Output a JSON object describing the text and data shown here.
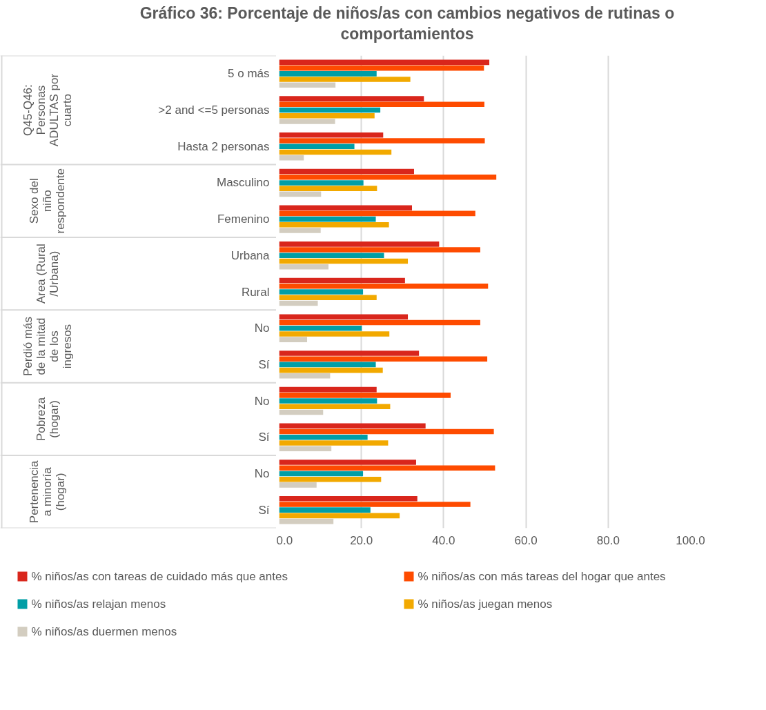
{
  "chart_data": {
    "type": "bar",
    "orientation": "horizontal",
    "title": "Gráfico 36: Porcentaje de niños/as con cambios negativos de rutinas o comportamientos",
    "categories": [
      "5 o más",
      ">2 and <=5 personas",
      "Hasta 2 personas",
      "Masculino",
      "Femenino",
      "Urbana",
      "Rural",
      "No",
      "Sí",
      "No",
      "Sí",
      "No",
      "Sí"
    ],
    "annotations": [
      "Q45-Q46: Personas ADULTAS por cuarto",
      "Sexo del niño respondente",
      "Area (Rural/Urbana)",
      "Perdió más de la mitad de los ingresos",
      "Pobreza (hogar)",
      "Pertenencia a minoría (hogar)"
    ],
    "series": [
      {
        "name": "% niños/as con tareas de cuidado más que antes",
        "color": "#d9261c",
        "values": [
          51.1,
          35.2,
          25.3,
          32.8,
          32.3,
          38.9,
          30.6,
          31.3,
          34.0,
          23.7,
          35.6,
          33.3,
          33.6
        ]
      },
      {
        "name": "% niños/as con más tareas del hogar que antes",
        "color": "#fe4b00",
        "values": [
          49.8,
          49.9,
          50.0,
          52.8,
          47.7,
          48.9,
          50.8,
          48.9,
          50.6,
          41.7,
          52.2,
          52.5,
          46.5
        ]
      },
      {
        "name": "% niños/as relajan menos",
        "color": "#009ea6",
        "values": [
          23.7,
          24.6,
          18.3,
          20.5,
          23.5,
          25.5,
          20.4,
          20.1,
          23.5,
          23.8,
          21.5,
          20.4,
          22.2
        ]
      },
      {
        "name": "% niños/as juegan menos",
        "color": "#f2a900",
        "values": [
          31.9,
          23.2,
          27.3,
          23.8,
          26.7,
          31.3,
          23.7,
          26.8,
          25.2,
          27.0,
          26.5,
          24.8,
          29.3
        ]
      },
      {
        "name": "% niños/as duermen menos",
        "color": "#d3cdc0",
        "values": [
          13.7,
          13.6,
          6.0,
          10.2,
          10.1,
          12.0,
          9.4,
          6.8,
          12.4,
          10.7,
          12.7,
          9.1,
          13.2
        ]
      }
    ],
    "xlim": [
      0,
      100
    ],
    "xticks": [
      {
        "value": 0,
        "label": "0.0"
      },
      {
        "value": 20,
        "label": "20.0"
      },
      {
        "value": 40,
        "label": "40.0"
      },
      {
        "value": 60,
        "label": "60.0"
      },
      {
        "value": 80,
        "label": "80.0"
      },
      {
        "value": 100,
        "label": "100.0"
      }
    ],
    "grid": "x",
    "legend": "bottom"
  }
}
